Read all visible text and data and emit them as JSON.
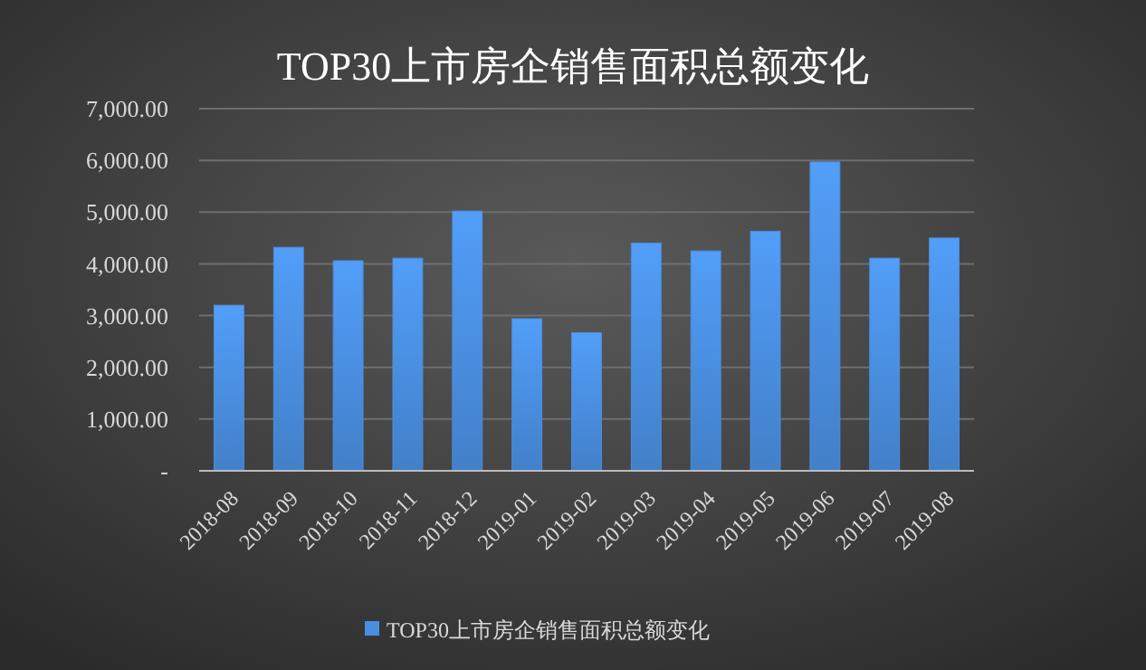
{
  "chart_data": {
    "type": "bar",
    "title": "TOP30上市房企销售面积总额变化",
    "categories": [
      "2018-08",
      "2018-09",
      "2018-10",
      "2018-11",
      "2018-12",
      "2019-01",
      "2019-02",
      "2019-03",
      "2019-04",
      "2019-05",
      "2019-06",
      "2019-07",
      "2019-08"
    ],
    "series": [
      {
        "name": "TOP30上市房企销售面积总额变化",
        "color": "#4a8ee0",
        "values": [
          3200,
          4320,
          4060,
          4110,
          5020,
          2940,
          2670,
          4400,
          4250,
          4630,
          5970,
          4110,
          4500
        ]
      }
    ],
    "ylim": [
      0,
      7000
    ],
    "yticks": [
      {
        "value": 0,
        "label": "-"
      },
      {
        "value": 1000,
        "label": "1,000.00"
      },
      {
        "value": 2000,
        "label": "2,000.00"
      },
      {
        "value": 3000,
        "label": "3,000.00"
      },
      {
        "value": 4000,
        "label": "4,000.00"
      },
      {
        "value": 5000,
        "label": "5,000.00"
      },
      {
        "value": 6000,
        "label": "6,000.00"
      },
      {
        "value": 7000,
        "label": "7,000.00"
      }
    ],
    "grid": "y",
    "legend": "bottom"
  }
}
